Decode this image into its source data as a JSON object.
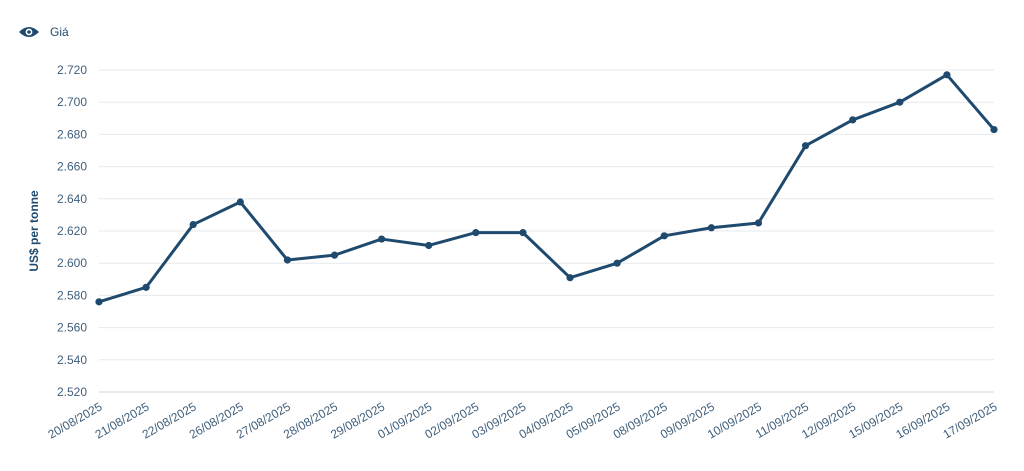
{
  "legend": {
    "label": "Giá",
    "icon": "eye-icon",
    "color": "#1f4a6e"
  },
  "chart_data": {
    "type": "line",
    "title": "",
    "xlabel": "",
    "ylabel": "US$ per tonne",
    "ylim": [
      2520,
      2720
    ],
    "yticks": [
      2520,
      2540,
      2560,
      2580,
      2600,
      2620,
      2640,
      2660,
      2680,
      2700,
      2720
    ],
    "ytick_labels": [
      "2.520",
      "2.540",
      "2.560",
      "2.580",
      "2.600",
      "2.620",
      "2.640",
      "2.660",
      "2.680",
      "2.700",
      "2.720"
    ],
    "grid": true,
    "legend_position": "top-left",
    "line_color": "#1f4a6e",
    "categories": [
      "20/08/2025",
      "21/08/2025",
      "22/08/2025",
      "26/08/2025",
      "27/08/2025",
      "28/08/2025",
      "29/08/2025",
      "01/09/2025",
      "02/09/2025",
      "03/09/2025",
      "04/09/2025",
      "05/09/2025",
      "08/09/2025",
      "09/09/2025",
      "10/09/2025",
      "11/09/2025",
      "12/09/2025",
      "15/09/2025",
      "16/09/2025",
      "17/09/2025"
    ],
    "series": [
      {
        "name": "Giá",
        "values": [
          2576,
          2585,
          2624,
          2638,
          2602,
          2605,
          2615,
          2611,
          2619,
          2619,
          2591,
          2600,
          2617,
          2622,
          2625,
          2673,
          2689,
          2700,
          2717,
          2683
        ]
      }
    ]
  }
}
